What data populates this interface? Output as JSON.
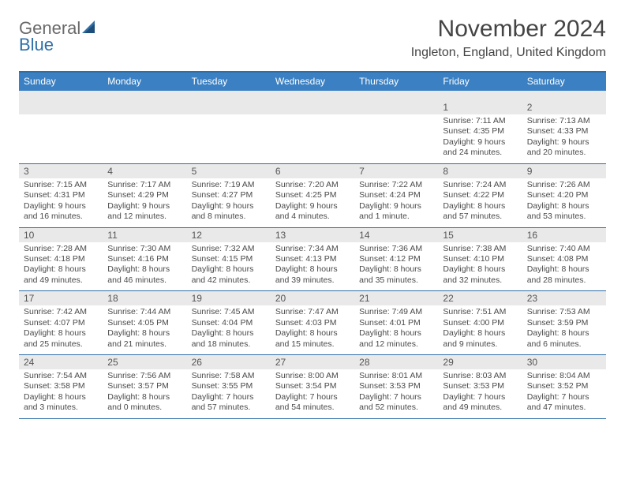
{
  "logo": {
    "word1": "General",
    "word2": "Blue"
  },
  "title": "November 2024",
  "location": "Ingleton, England, United Kingdom",
  "colors": {
    "header_bar": "#3a80c2",
    "rule": "#2f6fa8",
    "daynum_bg": "#e9e9e9",
    "text": "#4a4a4a"
  },
  "day_names": [
    "Sunday",
    "Monday",
    "Tuesday",
    "Wednesday",
    "Thursday",
    "Friday",
    "Saturday"
  ],
  "weeks": [
    {
      "nums": [
        "",
        "",
        "",
        "",
        "",
        "1",
        "2"
      ],
      "cells": [
        null,
        null,
        null,
        null,
        null,
        {
          "sunrise": "Sunrise: 7:11 AM",
          "sunset": "Sunset: 4:35 PM",
          "d1": "Daylight: 9 hours",
          "d2": "and 24 minutes."
        },
        {
          "sunrise": "Sunrise: 7:13 AM",
          "sunset": "Sunset: 4:33 PM",
          "d1": "Daylight: 9 hours",
          "d2": "and 20 minutes."
        }
      ]
    },
    {
      "nums": [
        "3",
        "4",
        "5",
        "6",
        "7",
        "8",
        "9"
      ],
      "cells": [
        {
          "sunrise": "Sunrise: 7:15 AM",
          "sunset": "Sunset: 4:31 PM",
          "d1": "Daylight: 9 hours",
          "d2": "and 16 minutes."
        },
        {
          "sunrise": "Sunrise: 7:17 AM",
          "sunset": "Sunset: 4:29 PM",
          "d1": "Daylight: 9 hours",
          "d2": "and 12 minutes."
        },
        {
          "sunrise": "Sunrise: 7:19 AM",
          "sunset": "Sunset: 4:27 PM",
          "d1": "Daylight: 9 hours",
          "d2": "and 8 minutes."
        },
        {
          "sunrise": "Sunrise: 7:20 AM",
          "sunset": "Sunset: 4:25 PM",
          "d1": "Daylight: 9 hours",
          "d2": "and 4 minutes."
        },
        {
          "sunrise": "Sunrise: 7:22 AM",
          "sunset": "Sunset: 4:24 PM",
          "d1": "Daylight: 9 hours",
          "d2": "and 1 minute."
        },
        {
          "sunrise": "Sunrise: 7:24 AM",
          "sunset": "Sunset: 4:22 PM",
          "d1": "Daylight: 8 hours",
          "d2": "and 57 minutes."
        },
        {
          "sunrise": "Sunrise: 7:26 AM",
          "sunset": "Sunset: 4:20 PM",
          "d1": "Daylight: 8 hours",
          "d2": "and 53 minutes."
        }
      ]
    },
    {
      "nums": [
        "10",
        "11",
        "12",
        "13",
        "14",
        "15",
        "16"
      ],
      "cells": [
        {
          "sunrise": "Sunrise: 7:28 AM",
          "sunset": "Sunset: 4:18 PM",
          "d1": "Daylight: 8 hours",
          "d2": "and 49 minutes."
        },
        {
          "sunrise": "Sunrise: 7:30 AM",
          "sunset": "Sunset: 4:16 PM",
          "d1": "Daylight: 8 hours",
          "d2": "and 46 minutes."
        },
        {
          "sunrise": "Sunrise: 7:32 AM",
          "sunset": "Sunset: 4:15 PM",
          "d1": "Daylight: 8 hours",
          "d2": "and 42 minutes."
        },
        {
          "sunrise": "Sunrise: 7:34 AM",
          "sunset": "Sunset: 4:13 PM",
          "d1": "Daylight: 8 hours",
          "d2": "and 39 minutes."
        },
        {
          "sunrise": "Sunrise: 7:36 AM",
          "sunset": "Sunset: 4:12 PM",
          "d1": "Daylight: 8 hours",
          "d2": "and 35 minutes."
        },
        {
          "sunrise": "Sunrise: 7:38 AM",
          "sunset": "Sunset: 4:10 PM",
          "d1": "Daylight: 8 hours",
          "d2": "and 32 minutes."
        },
        {
          "sunrise": "Sunrise: 7:40 AM",
          "sunset": "Sunset: 4:08 PM",
          "d1": "Daylight: 8 hours",
          "d2": "and 28 minutes."
        }
      ]
    },
    {
      "nums": [
        "17",
        "18",
        "19",
        "20",
        "21",
        "22",
        "23"
      ],
      "cells": [
        {
          "sunrise": "Sunrise: 7:42 AM",
          "sunset": "Sunset: 4:07 PM",
          "d1": "Daylight: 8 hours",
          "d2": "and 25 minutes."
        },
        {
          "sunrise": "Sunrise: 7:44 AM",
          "sunset": "Sunset: 4:05 PM",
          "d1": "Daylight: 8 hours",
          "d2": "and 21 minutes."
        },
        {
          "sunrise": "Sunrise: 7:45 AM",
          "sunset": "Sunset: 4:04 PM",
          "d1": "Daylight: 8 hours",
          "d2": "and 18 minutes."
        },
        {
          "sunrise": "Sunrise: 7:47 AM",
          "sunset": "Sunset: 4:03 PM",
          "d1": "Daylight: 8 hours",
          "d2": "and 15 minutes."
        },
        {
          "sunrise": "Sunrise: 7:49 AM",
          "sunset": "Sunset: 4:01 PM",
          "d1": "Daylight: 8 hours",
          "d2": "and 12 minutes."
        },
        {
          "sunrise": "Sunrise: 7:51 AM",
          "sunset": "Sunset: 4:00 PM",
          "d1": "Daylight: 8 hours",
          "d2": "and 9 minutes."
        },
        {
          "sunrise": "Sunrise: 7:53 AM",
          "sunset": "Sunset: 3:59 PM",
          "d1": "Daylight: 8 hours",
          "d2": "and 6 minutes."
        }
      ]
    },
    {
      "nums": [
        "24",
        "25",
        "26",
        "27",
        "28",
        "29",
        "30"
      ],
      "cells": [
        {
          "sunrise": "Sunrise: 7:54 AM",
          "sunset": "Sunset: 3:58 PM",
          "d1": "Daylight: 8 hours",
          "d2": "and 3 minutes."
        },
        {
          "sunrise": "Sunrise: 7:56 AM",
          "sunset": "Sunset: 3:57 PM",
          "d1": "Daylight: 8 hours",
          "d2": "and 0 minutes."
        },
        {
          "sunrise": "Sunrise: 7:58 AM",
          "sunset": "Sunset: 3:55 PM",
          "d1": "Daylight: 7 hours",
          "d2": "and 57 minutes."
        },
        {
          "sunrise": "Sunrise: 8:00 AM",
          "sunset": "Sunset: 3:54 PM",
          "d1": "Daylight: 7 hours",
          "d2": "and 54 minutes."
        },
        {
          "sunrise": "Sunrise: 8:01 AM",
          "sunset": "Sunset: 3:53 PM",
          "d1": "Daylight: 7 hours",
          "d2": "and 52 minutes."
        },
        {
          "sunrise": "Sunrise: 8:03 AM",
          "sunset": "Sunset: 3:53 PM",
          "d1": "Daylight: 7 hours",
          "d2": "and 49 minutes."
        },
        {
          "sunrise": "Sunrise: 8:04 AM",
          "sunset": "Sunset: 3:52 PM",
          "d1": "Daylight: 7 hours",
          "d2": "and 47 minutes."
        }
      ]
    }
  ]
}
